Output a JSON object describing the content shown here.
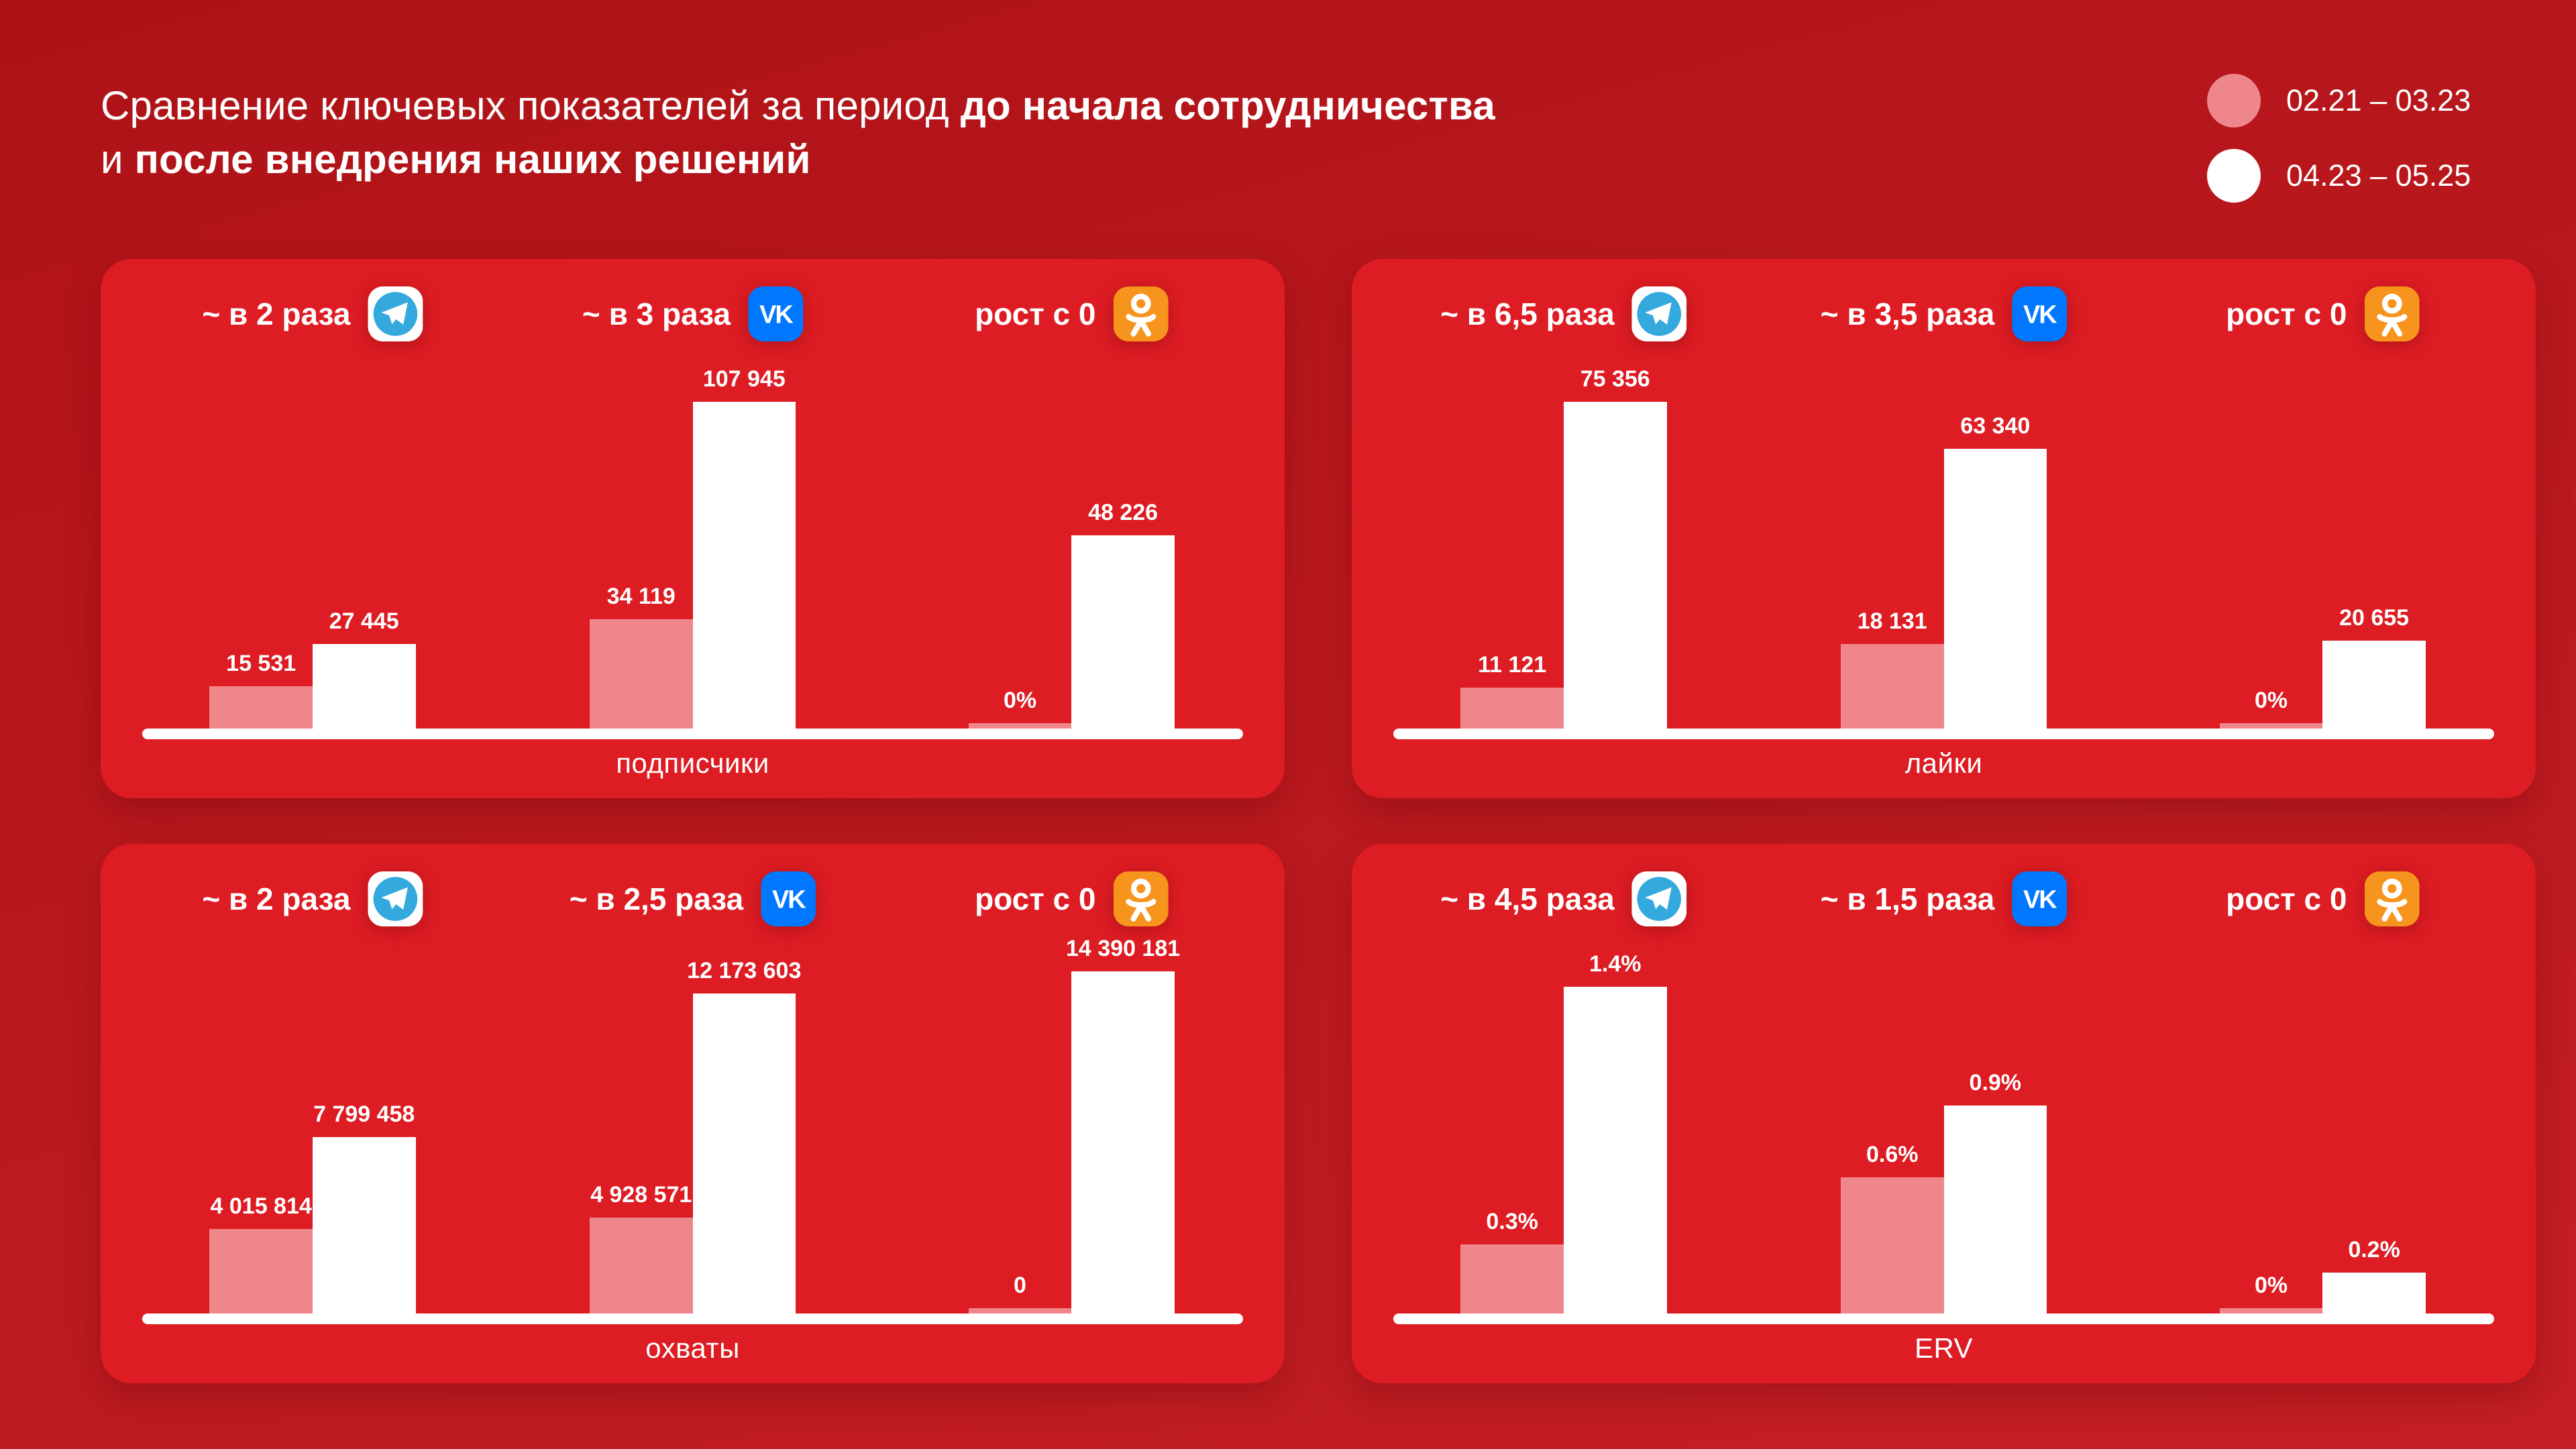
{
  "title": {
    "line1_regular": "Сравнение ключевых показателей за период ",
    "line1_bold": "до начала сотрудничества",
    "line2_regular": "и ",
    "line2_bold": "после внедрения наших решений"
  },
  "legend": {
    "before": {
      "label": "02.21 – 03.23",
      "color": "#ee868b"
    },
    "after": {
      "label": "04.23 – 05.25",
      "color": "#ffffff"
    }
  },
  "colors": {
    "background": "#b7171c",
    "panel": "#dd1c23",
    "bar_before": "#ee868b",
    "bar_after": "#ffffff",
    "telegram_blue": "#34a9dd",
    "vk_blue": "#0077ff",
    "ok_orange": "#f7941d",
    "text": "#ffffff"
  },
  "networks": [
    "Telegram",
    "VK",
    "Одноклассники"
  ],
  "chart_data": [
    {
      "type": "bar",
      "metric": "подписчики",
      "categories": [
        "Telegram",
        "VK",
        "Одноклассники"
      ],
      "series": [
        {
          "name": "02.21 – 03.23",
          "values": [
            15531,
            34119,
            0
          ]
        },
        {
          "name": "04.23 – 05.25",
          "values": [
            27445,
            107945,
            48226
          ]
        }
      ],
      "group_headlines": [
        "~ в 2 раза",
        "~ в 3 раза",
        "рост с 0"
      ],
      "value_labels": [
        [
          "15 531",
          "27 445"
        ],
        [
          "34 119",
          "107 945"
        ],
        [
          "0%",
          "48 226"
        ]
      ],
      "bar_heights_pct": [
        [
          13.4,
          26
        ],
        [
          33.4,
          98.2
        ],
        [
          2.4,
          58.4
        ]
      ],
      "legend_position": "top-right",
      "grid": false
    },
    {
      "type": "bar",
      "metric": "лайки",
      "categories": [
        "Telegram",
        "VK",
        "Одноклассники"
      ],
      "series": [
        {
          "name": "02.21 – 03.23",
          "values": [
            11121,
            18131,
            0
          ]
        },
        {
          "name": "04.23 – 05.25",
          "values": [
            75356,
            63340,
            20655
          ]
        }
      ],
      "group_headlines": [
        "~ в 6,5 раза",
        "~ в 3,5 раза",
        "рост с 0"
      ],
      "value_labels": [
        [
          "11 121",
          "75 356"
        ],
        [
          "18 131",
          "63 340"
        ],
        [
          "0%",
          "20 655"
        ]
      ],
      "bar_heights_pct": [
        [
          13,
          98.2
        ],
        [
          26,
          84.2
        ],
        [
          2.4,
          27
        ]
      ],
      "legend_position": "top-right",
      "grid": false
    },
    {
      "type": "bar",
      "metric": "охваты",
      "categories": [
        "Telegram",
        "VK",
        "Одноклассники"
      ],
      "series": [
        {
          "name": "02.21 – 03.23",
          "values": [
            4015814,
            4928571,
            0
          ]
        },
        {
          "name": "04.23 – 05.25",
          "values": [
            7799458,
            12173603,
            14390181
          ]
        }
      ],
      "group_headlines": [
        "~ в 2 раза",
        "~ в 2,5 раза",
        "рост с 0"
      ],
      "value_labels": [
        [
          "4 015 814",
          "7 799 458"
        ],
        [
          "4 928 571",
          "12 173 603"
        ],
        [
          "0",
          "14 390 181"
        ]
      ],
      "bar_heights_pct": [
        [
          26,
          53.4
        ],
        [
          29.4,
          96.2
        ],
        [
          2.4,
          102.8
        ]
      ],
      "legend_position": "top-right",
      "grid": false
    },
    {
      "type": "bar",
      "metric": "ERV",
      "categories": [
        "Telegram",
        "VK",
        "Одноклассники"
      ],
      "series": [
        {
          "name": "02.21 – 03.23",
          "values": [
            0.3,
            0.6,
            0
          ]
        },
        {
          "name": "04.23 – 05.25",
          "values": [
            1.4,
            0.9,
            0.2
          ]
        }
      ],
      "group_headlines": [
        "~ в 4,5 раза",
        "~ в 1,5 раза",
        "рост с 0"
      ],
      "value_labels": [
        [
          "0.3%",
          "1.4%"
        ],
        [
          "0.6%",
          "0.9%"
        ],
        [
          "0%",
          "0.2%"
        ]
      ],
      "bar_heights_pct": [
        [
          21.4,
          98.2
        ],
        [
          41.4,
          62.8
        ],
        [
          2.4,
          13
        ]
      ],
      "legend_position": "top-right",
      "grid": false
    }
  ]
}
